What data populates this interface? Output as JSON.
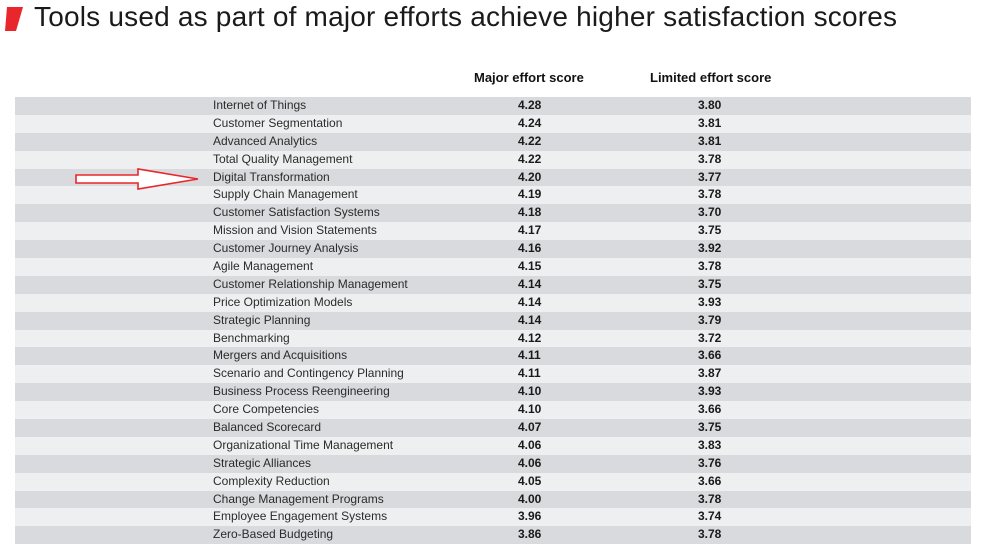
{
  "title": "Tools used as part of major efforts achieve higher satisfaction scores",
  "colors": {
    "accent": "#e8262b",
    "row_dark": "#d9dadd",
    "row_light": "#eeeff1"
  },
  "icons": {
    "title_mark": "red-slanted-bar-icon",
    "pointer": "red-outline-arrow-icon"
  },
  "chart_data": {
    "type": "table",
    "columns": [
      "",
      "Major effort score",
      "Limited effort score"
    ],
    "rows": [
      {
        "tool": "Internet of Things",
        "major": "4.28",
        "limited": "3.80"
      },
      {
        "tool": "Customer Segmentation",
        "major": "4.24",
        "limited": "3.81"
      },
      {
        "tool": "Advanced Analytics",
        "major": "4.22",
        "limited": "3.81"
      },
      {
        "tool": "Total Quality Management",
        "major": "4.22",
        "limited": "3.78"
      },
      {
        "tool": "Digital Transformation",
        "major": "4.20",
        "limited": "3.77"
      },
      {
        "tool": "Supply Chain Management",
        "major": "4.19",
        "limited": "3.78"
      },
      {
        "tool": "Customer Satisfaction Systems",
        "major": "4.18",
        "limited": "3.70"
      },
      {
        "tool": "Mission and Vision Statements",
        "major": "4.17",
        "limited": "3.75"
      },
      {
        "tool": "Customer Journey Analysis",
        "major": "4.16",
        "limited": "3.92"
      },
      {
        "tool": "Agile Management",
        "major": "4.15",
        "limited": "3.78"
      },
      {
        "tool": "Customer Relationship Management",
        "major": "4.14",
        "limited": "3.75"
      },
      {
        "tool": "Price Optimization Models",
        "major": "4.14",
        "limited": "3.93"
      },
      {
        "tool": "Strategic Planning",
        "major": "4.14",
        "limited": "3.79"
      },
      {
        "tool": "Benchmarking",
        "major": "4.12",
        "limited": "3.72"
      },
      {
        "tool": "Mergers and Acquisitions",
        "major": "4.11",
        "limited": "3.66"
      },
      {
        "tool": "Scenario and Contingency Planning",
        "major": "4.11",
        "limited": "3.87"
      },
      {
        "tool": "Business Process Reengineering",
        "major": "4.10",
        "limited": "3.93"
      },
      {
        "tool": "Core Competencies",
        "major": "4.10",
        "limited": "3.66"
      },
      {
        "tool": "Balanced Scorecard",
        "major": "4.07",
        "limited": "3.75"
      },
      {
        "tool": "Organizational Time Management",
        "major": "4.06",
        "limited": "3.83"
      },
      {
        "tool": "Strategic Alliances",
        "major": "4.06",
        "limited": "3.76"
      },
      {
        "tool": "Complexity Reduction",
        "major": "4.05",
        "limited": "3.66"
      },
      {
        "tool": "Change Management Programs",
        "major": "4.00",
        "limited": "3.78"
      },
      {
        "tool": "Employee Engagement Systems",
        "major": "3.96",
        "limited": "3.74"
      },
      {
        "tool": "Zero-Based Budgeting",
        "major": "3.86",
        "limited": "3.78"
      }
    ],
    "highlighted_row": "Digital Transformation"
  }
}
